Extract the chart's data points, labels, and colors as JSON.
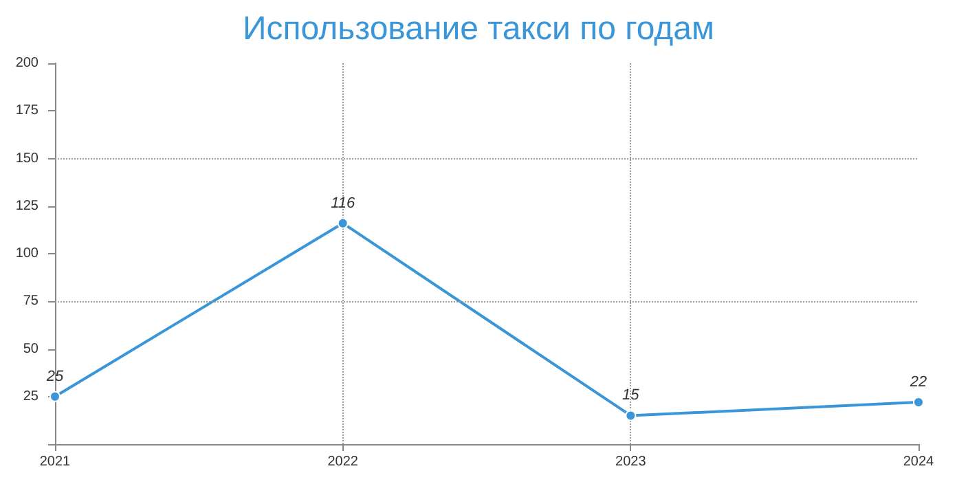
{
  "chart_data": {
    "type": "line",
    "title": "Использование такси по годам",
    "categories": [
      "2021",
      "2022",
      "2023",
      "2024"
    ],
    "series": [
      {
        "color": "#3a96d8",
        "values": [
          25,
          116,
          15,
          22
        ]
      }
    ],
    "ylim": [
      0,
      200
    ],
    "yticks": [
      {
        "value": 0,
        "label": null
      },
      25,
      50,
      75,
      100,
      125,
      150,
      175,
      200
    ],
    "grid": true,
    "marker": "circle",
    "line_style": "solid",
    "data_labels": true
  }
}
